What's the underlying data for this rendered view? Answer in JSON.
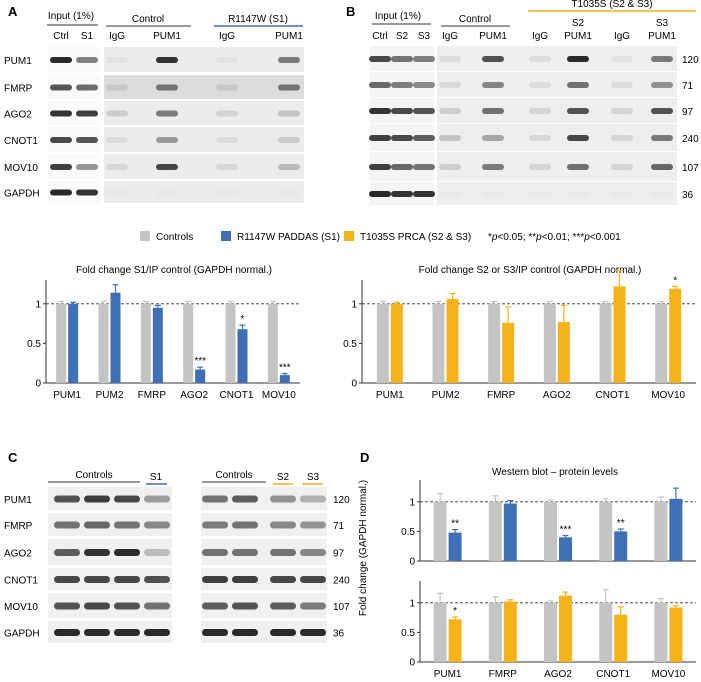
{
  "panels": {
    "A": "A",
    "B": "B",
    "C": "C",
    "D": "D"
  },
  "colors": {
    "control": "#c4c4c4",
    "s1": "#3f6fb5",
    "s23": "#f5b21b",
    "blot_bg": "#f0f0f0",
    "blot_dark": "#1e1e1e"
  },
  "panel_a": {
    "headers": {
      "input": "Input (1%)",
      "control": "Control",
      "mutant": "R1147W (S1)"
    },
    "lanes": [
      "Ctrl",
      "S1",
      "IgG",
      "PUM1",
      "IgG",
      "PUM1"
    ],
    "rows": [
      "PUM1",
      "FMRP",
      "AGO2",
      "CNOT1",
      "MOV10",
      "GAPDH"
    ]
  },
  "panel_b": {
    "headers": {
      "input": "Input (1%)",
      "control": "Control",
      "mutant": "T1035S (S2 & S3)"
    },
    "lanes": [
      "Ctrl",
      "S2",
      "S3",
      "IgG",
      "PUM1",
      "IgG",
      "S2",
      "PUM1",
      "IgG",
      "S3",
      "PUM1"
    ],
    "rows": [
      "PUM1",
      "FMRP",
      "AGO2",
      "CNOT1",
      "MOV10",
      "GAPDH"
    ],
    "mw": [
      "120",
      "71",
      "97",
      "240",
      "107",
      "36"
    ]
  },
  "legend": {
    "controls": "Controls",
    "s1": "R1147W PADDAS (S1)",
    "s23": "T1035S PRCA (S2 & S3)",
    "sig_a": "*",
    "sig_a_p": "p",
    "sig_a_t": "<0.05; ",
    "sig_b": "**",
    "sig_b_p": "p",
    "sig_b_t": "<0.01; ",
    "sig_c": "***",
    "sig_c_p": "p",
    "sig_c_t": "<0.001"
  },
  "panel_c": {
    "left_header": "Controls",
    "left_s": "S1",
    "right_header": "Controls",
    "right_s2": "S2",
    "right_s3": "S3",
    "rows": [
      "PUM1",
      "FMRP",
      "AGO2",
      "CNOT1",
      "MOV10",
      "GAPDH"
    ],
    "mw": [
      "120",
      "71",
      "97",
      "240",
      "107",
      "36"
    ]
  },
  "chart_data": [
    {
      "type": "bar",
      "panel": "A",
      "title": "Fold change S1/IP control (GAPDH normal.)",
      "categories": [
        "PUM1",
        "PUM2",
        "FMRP",
        "AGO2",
        "CNOT1",
        "MOV10"
      ],
      "series": [
        {
          "name": "Controls",
          "values": [
            1,
            1,
            1,
            1,
            1,
            1
          ],
          "errors": [
            0.03,
            0.03,
            0.03,
            0.03,
            0.03,
            0.03
          ]
        },
        {
          "name": "R1147W PADDAS (S1)",
          "values": [
            1.0,
            1.14,
            0.95,
            0.17,
            0.68,
            0.1
          ],
          "errors": [
            0.02,
            0.1,
            0.03,
            0.03,
            0.05,
            0.02
          ]
        }
      ],
      "significance": [
        "",
        "",
        "",
        "***",
        "*",
        "***"
      ],
      "ylim": [
        0,
        1.25
      ],
      "yticks": [
        "0",
        "0.5",
        "1"
      ],
      "reference_line": 1
    },
    {
      "type": "bar",
      "panel": "B",
      "title": "Fold change S2 or S3/IP control (GAPDH normal.)",
      "categories": [
        "PUM1",
        "PUM2",
        "FMRP",
        "AGO2",
        "CNOT1",
        "MOV10"
      ],
      "series": [
        {
          "name": "Controls",
          "values": [
            1,
            1,
            1,
            1,
            1,
            1
          ],
          "errors": [
            0.03,
            0.03,
            0.03,
            0.03,
            0.03,
            0.03
          ]
        },
        {
          "name": "T1035S PRCA (S2 & S3)",
          "values": [
            1.0,
            1.06,
            0.76,
            0.77,
            1.22,
            1.19
          ],
          "errors": [
            0.02,
            0.07,
            0.2,
            0.21,
            0.2,
            0.03
          ]
        }
      ],
      "significance": [
        "",
        "",
        "",
        "",
        "",
        "*"
      ],
      "ylim": [
        0,
        1.25
      ],
      "yticks": [
        "0",
        "0.5",
        "1"
      ],
      "reference_line": 1
    },
    {
      "type": "bar",
      "panel": "D-top",
      "title": "Western blot – protein levels",
      "categories": [
        "PUM1",
        "FMRP",
        "AGO2",
        "CNOT1",
        "MOV10"
      ],
      "series": [
        {
          "name": "Controls",
          "values": [
            1,
            1,
            1,
            1,
            1
          ],
          "errors": [
            0.14,
            0.1,
            0.03,
            0.05,
            0.08
          ]
        },
        {
          "name": "R1147W PADDAS (S1)",
          "values": [
            0.48,
            0.97,
            0.4,
            0.5,
            1.05
          ],
          "errors": [
            0.05,
            0.05,
            0.03,
            0.04,
            0.18
          ]
        }
      ],
      "significance": [
        "**",
        "",
        "***",
        "**",
        ""
      ],
      "ylim": [
        0,
        1.3
      ],
      "yticks": [
        "0",
        "0.5",
        "1"
      ],
      "reference_line": 1
    },
    {
      "type": "bar",
      "panel": "D-bottom",
      "title": "",
      "categories": [
        "PUM1",
        "FMRP",
        "AGO2",
        "CNOT1",
        "MOV10"
      ],
      "series": [
        {
          "name": "Controls",
          "values": [
            1,
            1,
            1,
            1,
            1
          ],
          "errors": [
            0.16,
            0.1,
            0.03,
            0.22,
            0.07
          ]
        },
        {
          "name": "T1035S PRCA (S2 & S3)",
          "values": [
            0.72,
            1.02,
            1.12,
            0.8,
            0.92
          ],
          "errors": [
            0.04,
            0.03,
            0.06,
            0.13,
            0.03
          ]
        }
      ],
      "significance": [
        "*",
        "",
        "",
        "",
        ""
      ],
      "ylim": [
        0,
        1.3
      ],
      "yticks": [
        "0",
        "0.5",
        "1"
      ],
      "reference_line": 1
    }
  ],
  "d_ylabel": "Fold change (GAPDH normal.)"
}
